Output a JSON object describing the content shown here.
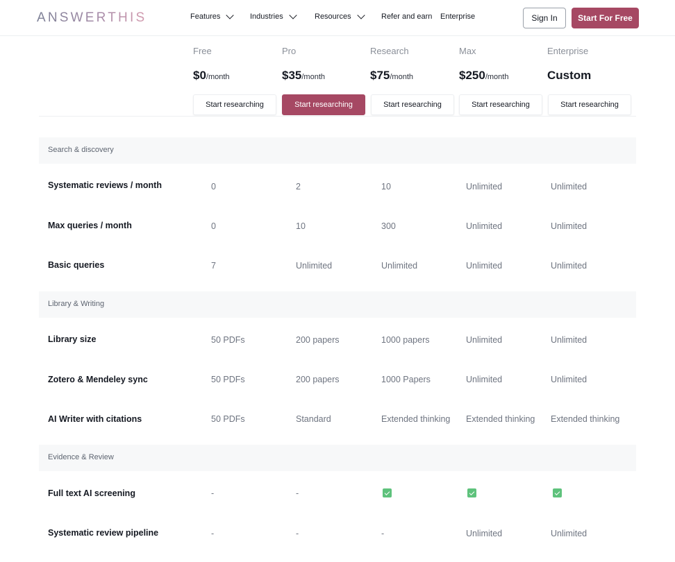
{
  "header": {
    "logo": "ANSWERTHIS",
    "nav": [
      {
        "label": "Features",
        "has_dropdown": true
      },
      {
        "label": "Industries",
        "has_dropdown": true
      },
      {
        "label": "Resources",
        "has_dropdown": true
      },
      {
        "label": "Refer and earn",
        "has_dropdown": false
      },
      {
        "label": "Enterprise",
        "has_dropdown": false
      }
    ],
    "signin_label": "Sign In",
    "start_free_label": "Start For Free",
    "accent_color": "#a64863"
  },
  "plans": [
    {
      "name": "Free",
      "price": "$0",
      "per": "/month",
      "cta": "Start researching",
      "highlighted": false
    },
    {
      "name": "Pro",
      "price": "$35",
      "per": "/month",
      "cta": "Start researching",
      "highlighted": true
    },
    {
      "name": "Research",
      "price": "$75",
      "per": "/month",
      "cta": "Start researching",
      "highlighted": false
    },
    {
      "name": "Max",
      "price": "$250",
      "per": "/month",
      "cta": "Start researching",
      "highlighted": false
    },
    {
      "name": "Enterprise",
      "price": "Custom",
      "per": "",
      "cta": "Start researching",
      "highlighted": false
    }
  ],
  "sections": [
    {
      "title": "Search & discovery",
      "rows": [
        {
          "feature": "Systematic reviews / month",
          "values": [
            "0",
            "2",
            "10",
            "Unlimited",
            "Unlimited"
          ]
        },
        {
          "feature": "Max queries / month",
          "values": [
            "0",
            "10",
            "300",
            "Unlimited",
            "Unlimited"
          ]
        },
        {
          "feature": "Basic queries",
          "values": [
            "7",
            "Unlimited",
            "Unlimited",
            "Unlimited",
            "Unlimited"
          ]
        }
      ]
    },
    {
      "title": "Library & Writing",
      "rows": [
        {
          "feature": "Library size",
          "values": [
            "50 PDFs",
            "200 papers",
            "1000 papers",
            "Unlimited",
            "Unlimited"
          ]
        },
        {
          "feature": "Zotero & Mendeley sync",
          "values": [
            "50 PDFs",
            "200 papers",
            "1000 Papers",
            "Unlimited",
            "Unlimited"
          ]
        },
        {
          "feature": "AI Writer with citations",
          "values": [
            "50 PDFs",
            "Standard",
            "Extended thinking",
            "Extended thinking",
            "Extended thinking"
          ]
        }
      ]
    },
    {
      "title": "Evidence & Review",
      "rows": [
        {
          "feature": "Full text AI screening",
          "values": [
            "-",
            "-",
            "check-icon",
            "check-icon",
            "check-icon"
          ]
        },
        {
          "feature": "Systematic review pipeline",
          "values": [
            "-",
            "-",
            "-",
            "Unlimited",
            "Unlimited"
          ]
        }
      ]
    }
  ]
}
